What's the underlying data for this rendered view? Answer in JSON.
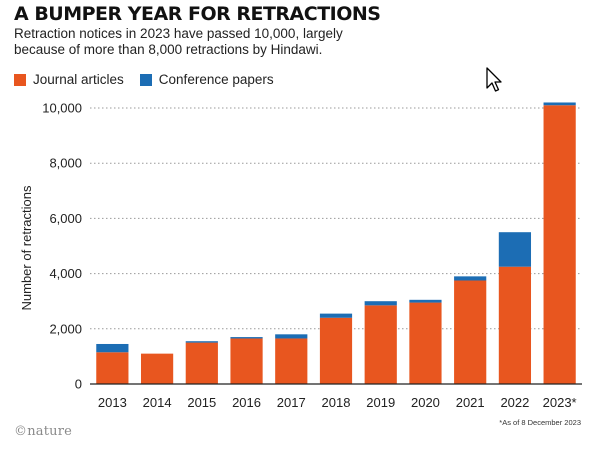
{
  "header": {
    "title": "A BUMPER YEAR FOR RETRACTIONS",
    "subtitle": "Retraction notices in 2023 have passed 10,000, largely because of more than 8,000 retractions by Hindawi."
  },
  "footer": {
    "brand": "©nature",
    "footnote": "*As of 8 December 2023"
  },
  "cursor": {
    "icon": "arrow-cursor-icon"
  },
  "chart_data": {
    "type": "bar",
    "stacked": true,
    "title": "A BUMPER YEAR FOR RETRACTIONS",
    "subtitle": "Retraction notices in 2023 have passed 10,000, largely because of more than 8,000 retractions by Hindawi.",
    "xlabel": "",
    "ylabel": "Number of retractions",
    "ylim": [
      0,
      10000
    ],
    "yticks": [
      0,
      2000,
      4000,
      6000,
      8000,
      10000
    ],
    "ytick_labels": [
      "0",
      "2,000",
      "4,000",
      "6,000",
      "8,000",
      "10,000"
    ],
    "grid": "horizontal dotted",
    "legend_position": "top-left",
    "categories": [
      "2013",
      "2014",
      "2015",
      "2016",
      "2017",
      "2018",
      "2019",
      "2020",
      "2021",
      "2022",
      "2023*"
    ],
    "series": [
      {
        "name": "Journal articles",
        "color": "#e8561f",
        "values": [
          1150,
          1100,
          1500,
          1650,
          1650,
          2400,
          2850,
          2950,
          3750,
          4250,
          10100
        ]
      },
      {
        "name": "Conference papers",
        "color": "#1c6db4",
        "values": [
          300,
          0,
          50,
          50,
          150,
          150,
          150,
          100,
          150,
          1250,
          100
        ]
      }
    ]
  }
}
